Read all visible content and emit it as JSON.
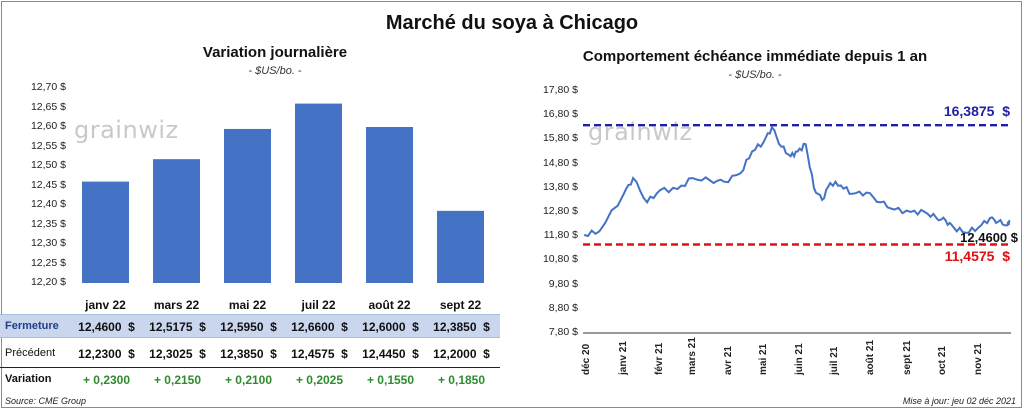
{
  "title": "Marché du soya à Chicago",
  "chart_data": [
    {
      "type": "bar",
      "title": "Variation  journalière",
      "unit": "- $US/bo. -",
      "categories": [
        "janv 22",
        "mars 22",
        "mai 22",
        "juil 22",
        "août 22",
        "sept 22"
      ],
      "values": [
        12.46,
        12.5175,
        12.595,
        12.66,
        12.6,
        12.385
      ],
      "ylim": [
        12.2,
        12.7
      ],
      "yticks": [
        "12,70 $",
        "12,65 $",
        "12,60 $",
        "12,55 $",
        "12,50 $",
        "12,45 $",
        "12,40 $",
        "12,35 $",
        "12,30 $",
        "12,25 $",
        "12,20 $"
      ],
      "color": "#4472c4",
      "table": {
        "rows": [
          {
            "label": "Fermeture",
            "values": [
              "12,4600  $",
              "12,5175  $",
              "12,5950  $",
              "12,6600  $",
              "12,6000  $",
              "12,3850  $"
            ]
          },
          {
            "label": "Précédent",
            "values": [
              "12,2300  $",
              "12,3025  $",
              "12,3850  $",
              "12,4575  $",
              "12,4450  $",
              "12,2000  $"
            ]
          },
          {
            "label": "Variation",
            "values": [
              "+ 0,2300",
              "+ 0,2150",
              "+ 0,2100",
              "+ 0,2025",
              "+ 0,1550",
              "+ 0,1850"
            ]
          }
        ]
      }
    },
    {
      "type": "line",
      "title": "Comportement  échéance immédiate depuis 1 an",
      "unit": "- $US/bo. -",
      "ylim": [
        7.8,
        17.8
      ],
      "yticks": [
        "17,80 $",
        "16,80 $",
        "15,80 $",
        "14,80 $",
        "13,80 $",
        "12,80 $",
        "11,80 $",
        "10,80 $",
        "9,80 $",
        "8,80 $",
        "7,80 $"
      ],
      "xticks": [
        "déc 20",
        "janv 21",
        "févr 21",
        "mars 21",
        "avr 21",
        "mai 21",
        "juin 21",
        "juil 21",
        "août 21",
        "sept 21",
        "oct 21",
        "nov 21"
      ],
      "series_color": "#4472c4",
      "series": [
        {
          "x": "2020-12-02",
          "y": 11.85
        },
        {
          "x": "2020-12-15",
          "y": 12.0
        },
        {
          "x": "2021-01-05",
          "y": 13.55
        },
        {
          "x": "2021-01-13",
          "y": 14.2
        },
        {
          "x": "2021-01-25",
          "y": 13.2
        },
        {
          "x": "2021-02-05",
          "y": 13.7
        },
        {
          "x": "2021-02-20",
          "y": 13.75
        },
        {
          "x": "2021-03-05",
          "y": 14.2
        },
        {
          "x": "2021-03-20",
          "y": 14.1
        },
        {
          "x": "2021-04-01",
          "y": 14.05
        },
        {
          "x": "2021-04-15",
          "y": 14.4
        },
        {
          "x": "2021-04-25",
          "y": 15.3
        },
        {
          "x": "2021-05-05",
          "y": 15.7
        },
        {
          "x": "2021-05-12",
          "y": 16.3
        },
        {
          "x": "2021-05-20",
          "y": 15.5
        },
        {
          "x": "2021-05-28",
          "y": 15.1
        },
        {
          "x": "2021-06-03",
          "y": 15.3
        },
        {
          "x": "2021-06-10",
          "y": 15.6
        },
        {
          "x": "2021-06-17",
          "y": 13.8
        },
        {
          "x": "2021-06-24",
          "y": 13.3
        },
        {
          "x": "2021-07-01",
          "y": 14.0
        },
        {
          "x": "2021-07-10",
          "y": 13.9
        },
        {
          "x": "2021-07-20",
          "y": 13.55
        },
        {
          "x": "2021-08-01",
          "y": 13.6
        },
        {
          "x": "2021-08-13",
          "y": 13.2
        },
        {
          "x": "2021-08-25",
          "y": 12.9
        },
        {
          "x": "2021-09-08",
          "y": 12.8
        },
        {
          "x": "2021-09-20",
          "y": 12.8
        },
        {
          "x": "2021-09-30",
          "y": 12.55
        },
        {
          "x": "2021-10-08",
          "y": 12.45
        },
        {
          "x": "2021-10-15",
          "y": 12.15
        },
        {
          "x": "2021-10-25",
          "y": 11.95
        },
        {
          "x": "2021-11-05",
          "y": 12.15
        },
        {
          "x": "2021-11-15",
          "y": 12.55
        },
        {
          "x": "2021-11-22",
          "y": 12.4
        },
        {
          "x": "2021-11-30",
          "y": 12.25
        },
        {
          "x": "2021-12-02",
          "y": 12.46
        }
      ],
      "reference_lines": [
        {
          "label": "16,3875  $",
          "value": 16.3875,
          "color": "#1f1fa8"
        },
        {
          "label": "11,4575  $",
          "value": 11.4575,
          "color": "#e01010"
        }
      ],
      "last_value_label": "12,4600 $"
    }
  ],
  "watermark": "grainwiz",
  "footer": {
    "source": "Source: CME Group",
    "updated": "Mise à jour: jeu 02 déc 2021"
  },
  "colors": {
    "bar": "#4472c4",
    "fermeture_row_bg": "#c9d6ee",
    "variation_text": "#2e8b2e"
  }
}
